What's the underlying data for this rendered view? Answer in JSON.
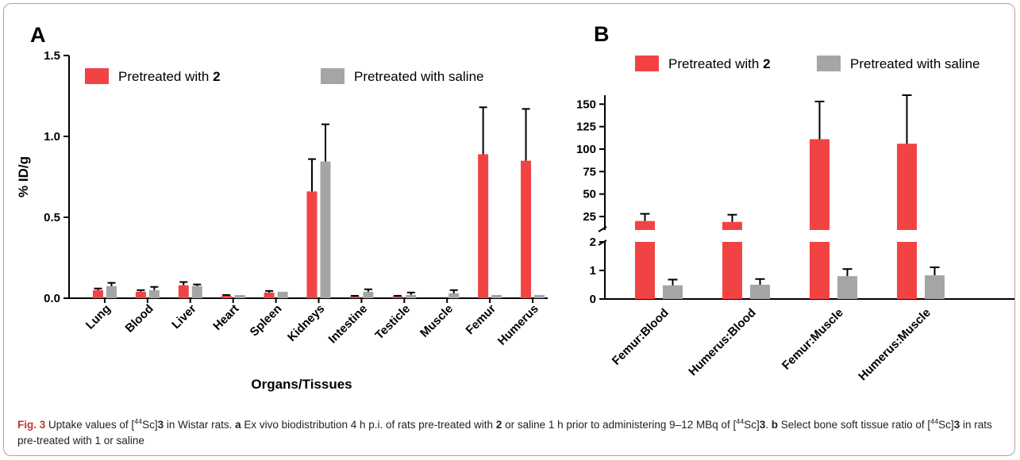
{
  "panel_a": {
    "letter": "A"
  },
  "panel_b": {
    "letter": "B"
  },
  "colors": {
    "series1": "#f24344",
    "series2": "#a5a5a5"
  },
  "chart_data": [
    {
      "type": "bar",
      "panel": "A",
      "xlabel": "Organs/Tissues",
      "ylabel": "% ID/g",
      "ylim": [
        0,
        1.5
      ],
      "yticks": [
        "0.0",
        "0.5",
        "1.0",
        "1.5"
      ],
      "categories": [
        "Lung",
        "Blood",
        "Liver",
        "Heart",
        "Spleen",
        "Kidneys",
        "Intestine",
        "Testicle",
        "Muscle",
        "Femur",
        "Humerus"
      ],
      "legend": {
        "series1_prefix": "Pretreated with ",
        "series1_bold": "2",
        "series2": "Pretreated with saline",
        "placement": "top"
      },
      "series": [
        {
          "name": "Pretreated with 2",
          "values": [
            0.05,
            0.04,
            0.08,
            0.015,
            0.035,
            0.66,
            0.01,
            0.01,
            0.0,
            0.89,
            0.85
          ],
          "errors": [
            0.01,
            0.01,
            0.02,
            0.005,
            0.01,
            0.2,
            0.005,
            0.005,
            0.0,
            0.29,
            0.32
          ]
        },
        {
          "name": "Pretreated with saline",
          "values": [
            0.075,
            0.05,
            0.075,
            0.02,
            0.04,
            0.845,
            0.04,
            0.02,
            0.03,
            0.02,
            0.02
          ],
          "errors": [
            0.02,
            0.02,
            0.01,
            0.0,
            0.0,
            0.23,
            0.015,
            0.015,
            0.02,
            0.0,
            0.0
          ]
        }
      ]
    },
    {
      "type": "bar",
      "panel": "B",
      "broken_axis": true,
      "lower_ylim": [
        0,
        2
      ],
      "upper_ylim": [
        10,
        160
      ],
      "lower_yticks": [
        "0",
        "1",
        "2"
      ],
      "upper_yticks": [
        "25",
        "50",
        "75",
        "100",
        "125",
        "150"
      ],
      "categories": [
        "Femur:Blood",
        "Humerus:Blood",
        "Femur:Muscle",
        "Humerus:Muscle"
      ],
      "legend": {
        "series1_prefix": "Pretreated with ",
        "series1_bold": "2",
        "series2": "Pretreated with saline",
        "placement": "top"
      },
      "series": [
        {
          "name": "Pretreated with 2",
          "values": [
            20,
            19,
            111,
            106
          ],
          "errors": [
            8,
            8,
            42,
            54
          ]
        },
        {
          "name": "Pretreated with saline",
          "values": [
            0.48,
            0.5,
            0.8,
            0.83
          ],
          "errors": [
            0.2,
            0.2,
            0.25,
            0.28
          ]
        }
      ]
    }
  ],
  "caption": {
    "fig_label": "Fig. 3",
    "p1": " Uptake values of [",
    "p2": "44",
    "p3": "Sc]",
    "p4": "3",
    "p5": " in Wistar rats. ",
    "p6": "a",
    "p7": " Ex vivo biodistribution 4 h p.i. of rats pre-treated with ",
    "p8": "2",
    "p9": " or saline 1 h prior to administering 9–12 MBq of [",
    "p10": "44",
    "p11": "Sc]",
    "p12": "3",
    "p13": ". ",
    "p14": "b",
    "p15": " Select bone soft tissue ratio of [",
    "p16": "44",
    "p17": "Sc]",
    "p18": "3",
    "p19": " in rats pre-treated with 1 or saline"
  }
}
